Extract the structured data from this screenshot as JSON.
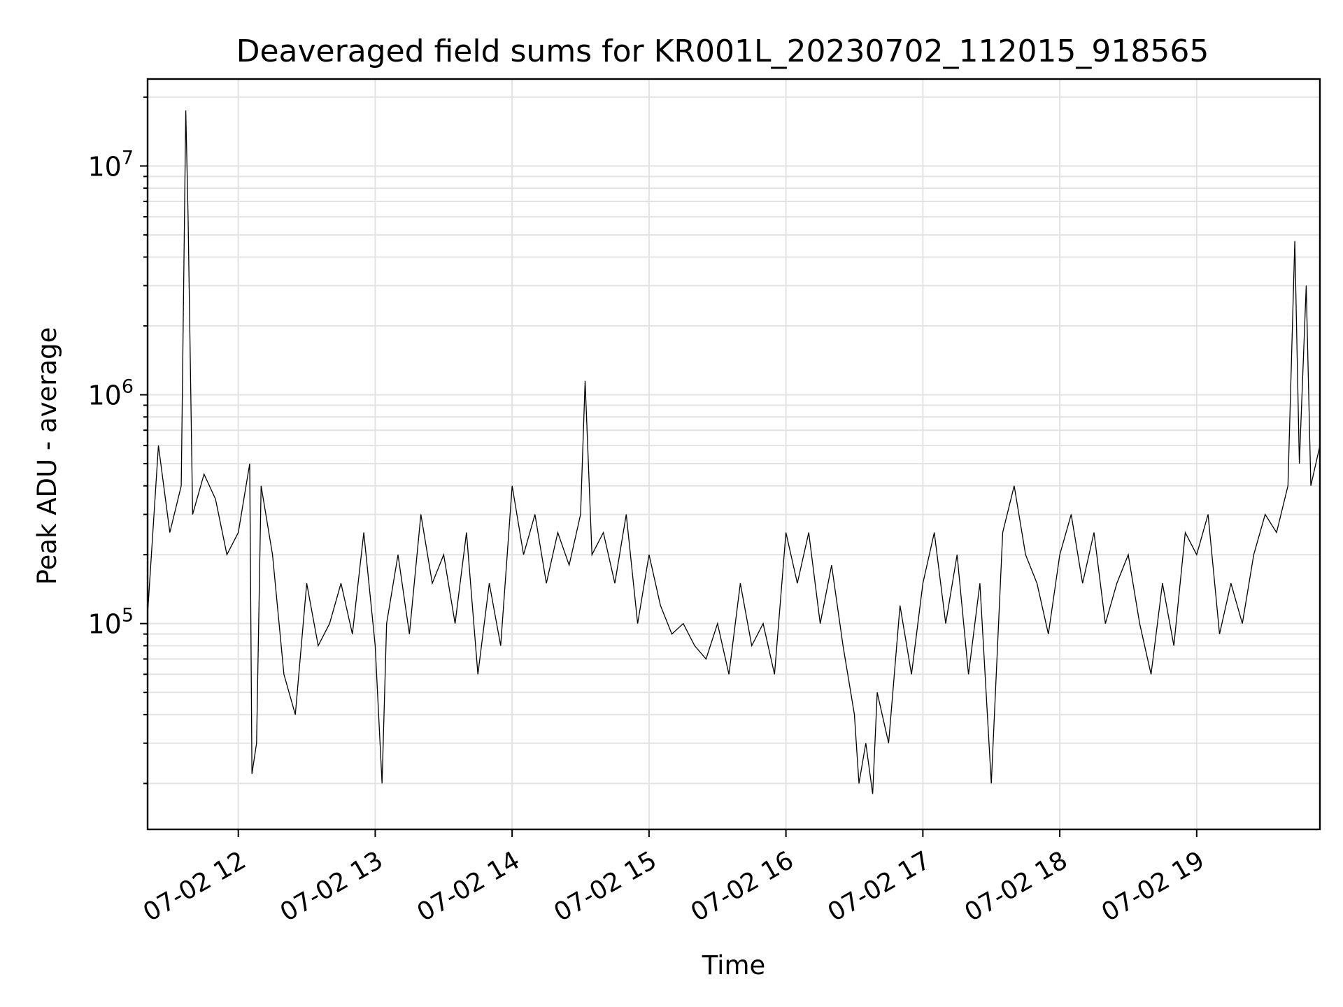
{
  "chart_data": {
    "type": "line",
    "title": "Deaveraged field sums for KR001L_20230702_112015_918565",
    "xlabel": "Time",
    "ylabel": "Peak ADU - average",
    "yscale": "log",
    "grid": true,
    "xlim": [
      "2023-07-02 11:20:15",
      "2023-07-02 19:54:00"
    ],
    "ylim": [
      12600,
      24000000
    ],
    "x_ticks": [
      {
        "time": "2023-07-02 12:00",
        "label": "07-02 12"
      },
      {
        "time": "2023-07-02 13:00",
        "label": "07-02 13"
      },
      {
        "time": "2023-07-02 14:00",
        "label": "07-02 14"
      },
      {
        "time": "2023-07-02 15:00",
        "label": "07-02 15"
      },
      {
        "time": "2023-07-02 16:00",
        "label": "07-02 16"
      },
      {
        "time": "2023-07-02 17:00",
        "label": "07-02 17"
      },
      {
        "time": "2023-07-02 18:00",
        "label": "07-02 18"
      },
      {
        "time": "2023-07-02 19:00",
        "label": "07-02 19"
      }
    ],
    "y_ticks": [
      {
        "value": 100000,
        "base": "10",
        "exponent": "5"
      },
      {
        "value": 1000000,
        "base": "10",
        "exponent": "6"
      },
      {
        "value": 10000000,
        "base": "10",
        "exponent": "7"
      }
    ],
    "series": [
      {
        "color": "#000000",
        "x": [
          "2023-07-02 11:20:15",
          "2023-07-02 11:25",
          "2023-07-02 11:30",
          "2023-07-02 11:35",
          "2023-07-02 11:37",
          "2023-07-02 11:38",
          "2023-07-02 11:40",
          "2023-07-02 11:45",
          "2023-07-02 11:50",
          "2023-07-02 11:55",
          "2023-07-02 12:00",
          "2023-07-02 12:05",
          "2023-07-02 12:06",
          "2023-07-02 12:08",
          "2023-07-02 12:10",
          "2023-07-02 12:15",
          "2023-07-02 12:20",
          "2023-07-02 12:25",
          "2023-07-02 12:30",
          "2023-07-02 12:35",
          "2023-07-02 12:40",
          "2023-07-02 12:45",
          "2023-07-02 12:50",
          "2023-07-02 12:55",
          "2023-07-02 13:00",
          "2023-07-02 13:03",
          "2023-07-02 13:05",
          "2023-07-02 13:10",
          "2023-07-02 13:15",
          "2023-07-02 13:20",
          "2023-07-02 13:25",
          "2023-07-02 13:30",
          "2023-07-02 13:35",
          "2023-07-02 13:40",
          "2023-07-02 13:45",
          "2023-07-02 13:50",
          "2023-07-02 13:55",
          "2023-07-02 14:00",
          "2023-07-02 14:05",
          "2023-07-02 14:10",
          "2023-07-02 14:15",
          "2023-07-02 14:20",
          "2023-07-02 14:25",
          "2023-07-02 14:30",
          "2023-07-02 14:32",
          "2023-07-02 14:35",
          "2023-07-02 14:40",
          "2023-07-02 14:45",
          "2023-07-02 14:50",
          "2023-07-02 14:55",
          "2023-07-02 15:00",
          "2023-07-02 15:05",
          "2023-07-02 15:10",
          "2023-07-02 15:15",
          "2023-07-02 15:20",
          "2023-07-02 15:25",
          "2023-07-02 15:30",
          "2023-07-02 15:35",
          "2023-07-02 15:40",
          "2023-07-02 15:45",
          "2023-07-02 15:50",
          "2023-07-02 15:55",
          "2023-07-02 16:00",
          "2023-07-02 16:05",
          "2023-07-02 16:10",
          "2023-07-02 16:15",
          "2023-07-02 16:20",
          "2023-07-02 16:25",
          "2023-07-02 16:30",
          "2023-07-02 16:32",
          "2023-07-02 16:35",
          "2023-07-02 16:38",
          "2023-07-02 16:40",
          "2023-07-02 16:45",
          "2023-07-02 16:50",
          "2023-07-02 16:55",
          "2023-07-02 17:00",
          "2023-07-02 17:05",
          "2023-07-02 17:10",
          "2023-07-02 17:15",
          "2023-07-02 17:20",
          "2023-07-02 17:25",
          "2023-07-02 17:30",
          "2023-07-02 17:35",
          "2023-07-02 17:40",
          "2023-07-02 17:45",
          "2023-07-02 17:50",
          "2023-07-02 17:55",
          "2023-07-02 18:00",
          "2023-07-02 18:05",
          "2023-07-02 18:10",
          "2023-07-02 18:15",
          "2023-07-02 18:20",
          "2023-07-02 18:25",
          "2023-07-02 18:30",
          "2023-07-02 18:35",
          "2023-07-02 18:40",
          "2023-07-02 18:45",
          "2023-07-02 18:50",
          "2023-07-02 18:55",
          "2023-07-02 19:00",
          "2023-07-02 19:05",
          "2023-07-02 19:10",
          "2023-07-02 19:15",
          "2023-07-02 19:20",
          "2023-07-02 19:25",
          "2023-07-02 19:30",
          "2023-07-02 19:35",
          "2023-07-02 19:40",
          "2023-07-02 19:43",
          "2023-07-02 19:45",
          "2023-07-02 19:48",
          "2023-07-02 19:50",
          "2023-07-02 19:54"
        ],
        "y": [
          110000,
          600000,
          250000,
          400000,
          17500000,
          6000000,
          300000,
          450000,
          350000,
          200000,
          250000,
          500000,
          22000,
          30000,
          400000,
          200000,
          60000,
          40000,
          150000,
          80000,
          100000,
          150000,
          90000,
          250000,
          80000,
          20000,
          100000,
          200000,
          90000,
          300000,
          150000,
          200000,
          100000,
          250000,
          60000,
          150000,
          80000,
          400000,
          200000,
          300000,
          150000,
          250000,
          180000,
          300000,
          1150000,
          200000,
          250000,
          150000,
          300000,
          100000,
          200000,
          120000,
          90000,
          100000,
          80000,
          70000,
          100000,
          60000,
          150000,
          80000,
          100000,
          60000,
          250000,
          150000,
          250000,
          100000,
          180000,
          80000,
          40000,
          20000,
          30000,
          18000,
          50000,
          30000,
          120000,
          60000,
          150000,
          250000,
          100000,
          200000,
          60000,
          150000,
          20000,
          250000,
          400000,
          200000,
          150000,
          90000,
          200000,
          300000,
          150000,
          250000,
          100000,
          150000,
          200000,
          100000,
          60000,
          150000,
          80000,
          250000,
          200000,
          300000,
          90000,
          150000,
          100000,
          200000,
          300000,
          250000,
          400000,
          4700000,
          500000,
          3000000,
          400000,
          600000
        ]
      }
    ]
  }
}
